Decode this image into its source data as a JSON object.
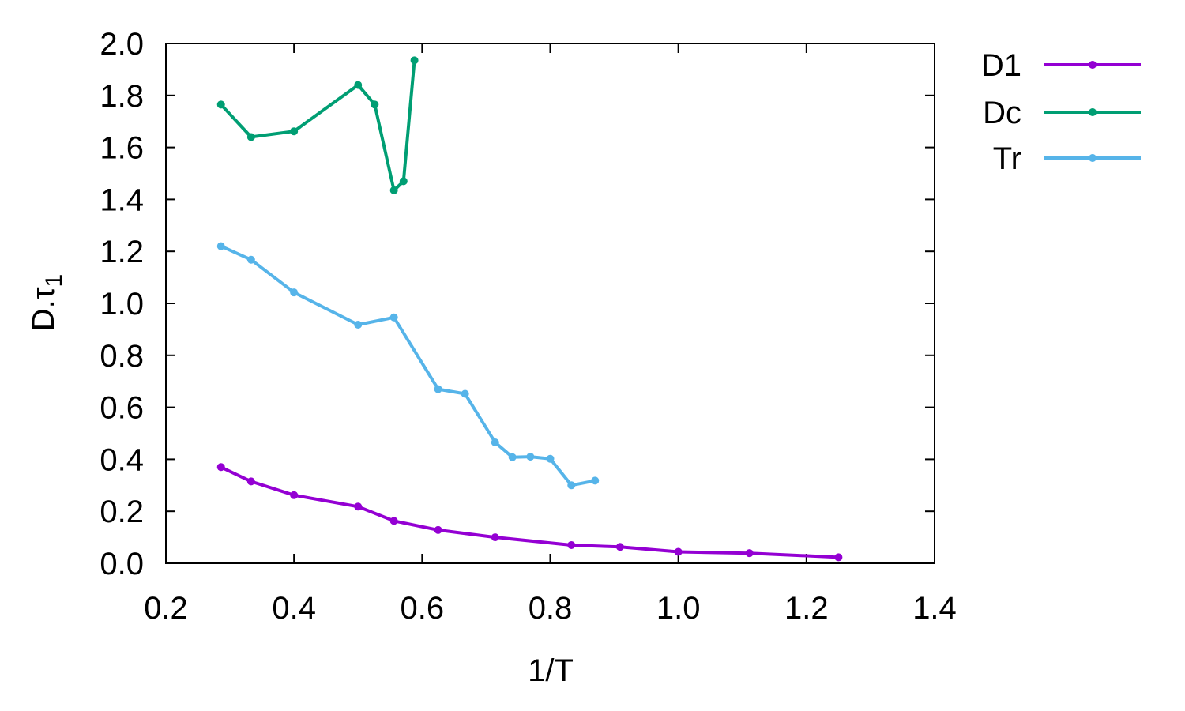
{
  "chart_data": {
    "type": "line",
    "xlabel": "1/T",
    "ylabel_main": "D.τ",
    "ylabel_sub": "1",
    "xlim": [
      0.2,
      1.4
    ],
    "ylim": [
      0.0,
      2.0
    ],
    "xticks": [
      "0.2",
      "0.4",
      "0.6",
      "0.8",
      "1.0",
      "1.2",
      "1.4"
    ],
    "yticks": [
      "0.0",
      "0.2",
      "0.4",
      "0.6",
      "0.8",
      "1.0",
      "1.2",
      "1.4",
      "1.6",
      "1.8",
      "2.0"
    ],
    "grid": false,
    "legend_position": "outside-right-top",
    "series": [
      {
        "name": "D1",
        "color": "#9400d3",
        "x": [
          0.286,
          0.333,
          0.4,
          0.5,
          0.556,
          0.625,
          0.714,
          0.833,
          0.909,
          1.0,
          1.111,
          1.25
        ],
        "y": [
          0.37,
          0.315,
          0.262,
          0.218,
          0.163,
          0.128,
          0.1,
          0.07,
          0.063,
          0.044,
          0.039,
          0.023
        ]
      },
      {
        "name": "Dc",
        "color": "#009e73",
        "x": [
          0.286,
          0.333,
          0.4,
          0.5,
          0.526,
          0.556,
          0.571,
          0.588
        ],
        "y": [
          1.765,
          1.64,
          1.662,
          1.84,
          1.765,
          1.435,
          1.47,
          1.935
        ]
      },
      {
        "name": "Tr",
        "color": "#56b4e9",
        "x": [
          0.286,
          0.333,
          0.4,
          0.5,
          0.556,
          0.625,
          0.667,
          0.714,
          0.741,
          0.769,
          0.8,
          0.833,
          0.87
        ],
        "y": [
          1.22,
          1.168,
          1.042,
          0.918,
          0.946,
          0.67,
          0.652,
          0.465,
          0.408,
          0.41,
          0.402,
          0.3,
          0.318
        ]
      }
    ]
  }
}
